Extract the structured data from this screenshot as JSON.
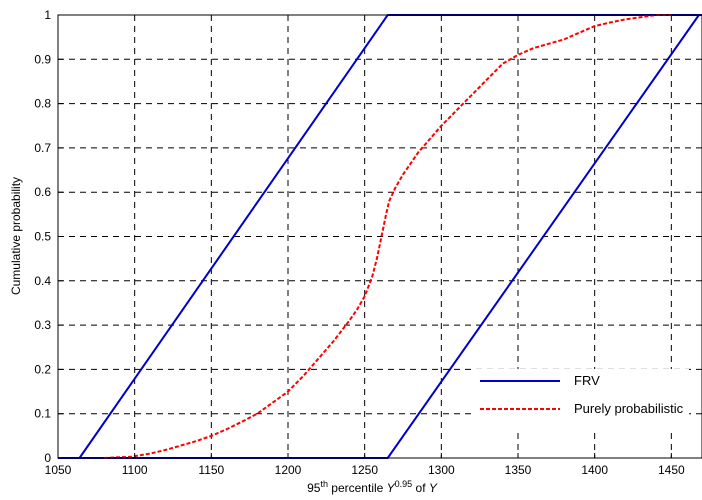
{
  "chart_data": {
    "type": "line",
    "title": "",
    "xlabel": {
      "prefix": "95",
      "prefix_sup": "th",
      "middle": " percentile ",
      "var": "Y",
      "var_sup": "0.95",
      "suffix": " of ",
      "var2": "Y"
    },
    "ylabel": "Cumulative probability",
    "xlim": [
      1050,
      1470
    ],
    "ylim": [
      0,
      1
    ],
    "xticks": [
      "1050",
      "1100",
      "1150",
      "1200",
      "1250",
      "1300",
      "1350",
      "1400",
      "1450"
    ],
    "yticks": [
      "0",
      "0.1",
      "0.2",
      "0.3",
      "0.4",
      "0.5",
      "0.6",
      "0.7",
      "0.8",
      "0.9",
      "1"
    ],
    "grid": true,
    "legend_position": "bottom-right",
    "series": [
      {
        "name": "FRV",
        "color": "#0000cc",
        "style": "solid",
        "segments": [
          {
            "x": [
              1064,
              1265,
              1470
            ],
            "y": [
              0,
              1,
              1
            ]
          },
          {
            "x": [
              1050,
              1265,
              1468
            ],
            "y": [
              0,
              0,
              1
            ]
          }
        ]
      },
      {
        "name": "Purely probabilistic",
        "color": "#ff0000",
        "style": "dashed",
        "segments": [
          {
            "x": [
              1080,
              1098,
              1110,
              1120,
              1130,
              1140,
              1150,
              1160,
              1170,
              1180,
              1190,
              1200,
              1210,
              1220,
              1230,
              1240,
              1245,
              1250,
              1255,
              1258,
              1261,
              1264,
              1266,
              1268,
              1270,
              1275,
              1280,
              1285,
              1290,
              1300,
              1310,
              1320,
              1330,
              1340,
              1350,
              1360,
              1370,
              1380,
              1390,
              1400,
              1410,
              1420,
              1430,
              1440,
              1450
            ],
            "y": [
              0,
              0.003,
              0.01,
              0.018,
              0.028,
              0.038,
              0.05,
              0.065,
              0.082,
              0.1,
              0.125,
              0.15,
              0.185,
              0.225,
              0.265,
              0.31,
              0.335,
              0.365,
              0.41,
              0.45,
              0.5,
              0.55,
              0.58,
              0.595,
              0.61,
              0.64,
              0.665,
              0.69,
              0.71,
              0.75,
              0.785,
              0.82,
              0.855,
              0.89,
              0.91,
              0.925,
              0.935,
              0.945,
              0.96,
              0.975,
              0.983,
              0.99,
              0.995,
              1,
              1
            ]
          }
        ]
      }
    ]
  }
}
